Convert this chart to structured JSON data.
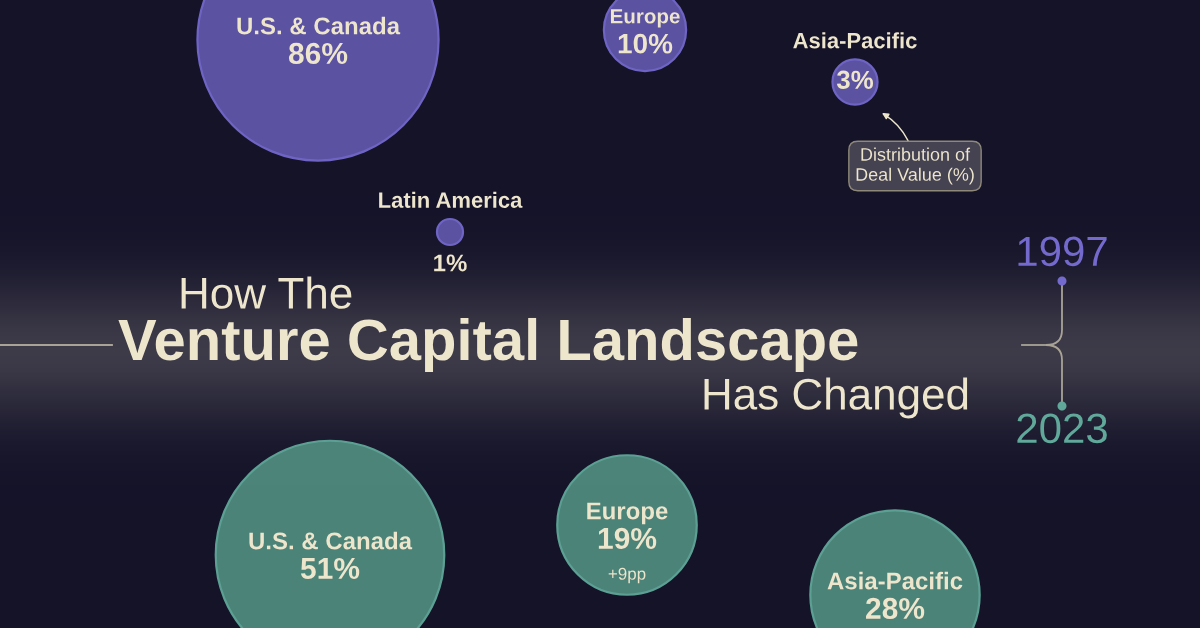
{
  "chart_data": [
    {
      "type": "other",
      "title": "How The\nVenture Capital Landscape\nHas Changed",
      "subtitle": "1997",
      "categories": [
        "U.S. & Canada",
        "Europe",
        "Asia-Pacific",
        "Latin America"
      ],
      "values": [
        86,
        10,
        3,
        1
      ],
      "value_labels": [
        "86%",
        "10%",
        "3%",
        "1%"
      ],
      "color": "#5f56a8",
      "annotations": [
        {
          "text": "Distribution of\nDeal Value (%)",
          "x": "Asia-Pacific"
        }
      ]
    },
    {
      "type": "other",
      "subtitle": "2023",
      "categories": [
        "U.S. & Canada",
        "Europe",
        "Asia-Pacific"
      ],
      "values": [
        51,
        19,
        28
      ],
      "value_labels": [
        "51%",
        "19%",
        "28%"
      ],
      "color": "#4f8a7e",
      "annotations": [
        {
          "text": "+9pp",
          "x": "Europe"
        }
      ]
    }
  ]
}
